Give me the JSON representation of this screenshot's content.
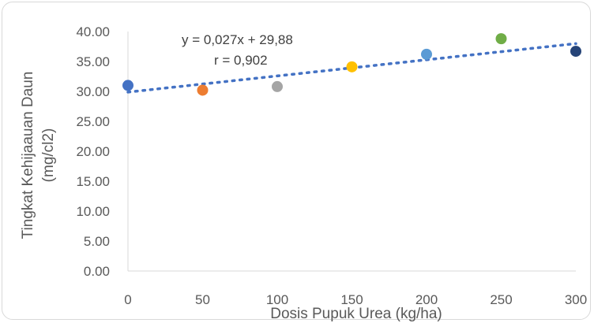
{
  "chart_data": {
    "type": "scatter",
    "title": "",
    "xlabel": "Dosis Pupuk Urea (kg/ha)",
    "ylabel_line1": "Tingkat Kehijaauan Daun",
    "ylabel_line2": "(mg/cl2)",
    "xlim": [
      0,
      300
    ],
    "ylim": [
      0,
      40
    ],
    "x_ticks": [
      "0",
      "50",
      "100",
      "150",
      "200",
      "250",
      "300"
    ],
    "x_tick_values": [
      0,
      50,
      100,
      150,
      200,
      250,
      300
    ],
    "y_ticks": [
      "0.00",
      "5.00",
      "10.00",
      "15.00",
      "20.00",
      "25.00",
      "30.00",
      "35.00",
      "40.00"
    ],
    "y_tick_values": [
      0,
      5,
      10,
      15,
      20,
      25,
      30,
      35,
      40
    ],
    "grid": false,
    "points": [
      {
        "x": 0,
        "y": 31.0,
        "color": "#4472c4"
      },
      {
        "x": 50,
        "y": 30.2,
        "color": "#ed7d31"
      },
      {
        "x": 100,
        "y": 30.8,
        "color": "#a5a5a5"
      },
      {
        "x": 150,
        "y": 34.1,
        "color": "#ffc000"
      },
      {
        "x": 200,
        "y": 36.2,
        "color": "#5b9bd5"
      },
      {
        "x": 250,
        "y": 38.8,
        "color": "#70ad47"
      },
      {
        "x": 300,
        "y": 36.7,
        "color": "#264478"
      }
    ],
    "trendline": {
      "slope": 0.027,
      "intercept": 29.88,
      "color": "#4472c4",
      "style": "dotted"
    },
    "annotations": {
      "equation": "y = 0,027x + 29,88",
      "correlation": "r = 0,902"
    }
  }
}
